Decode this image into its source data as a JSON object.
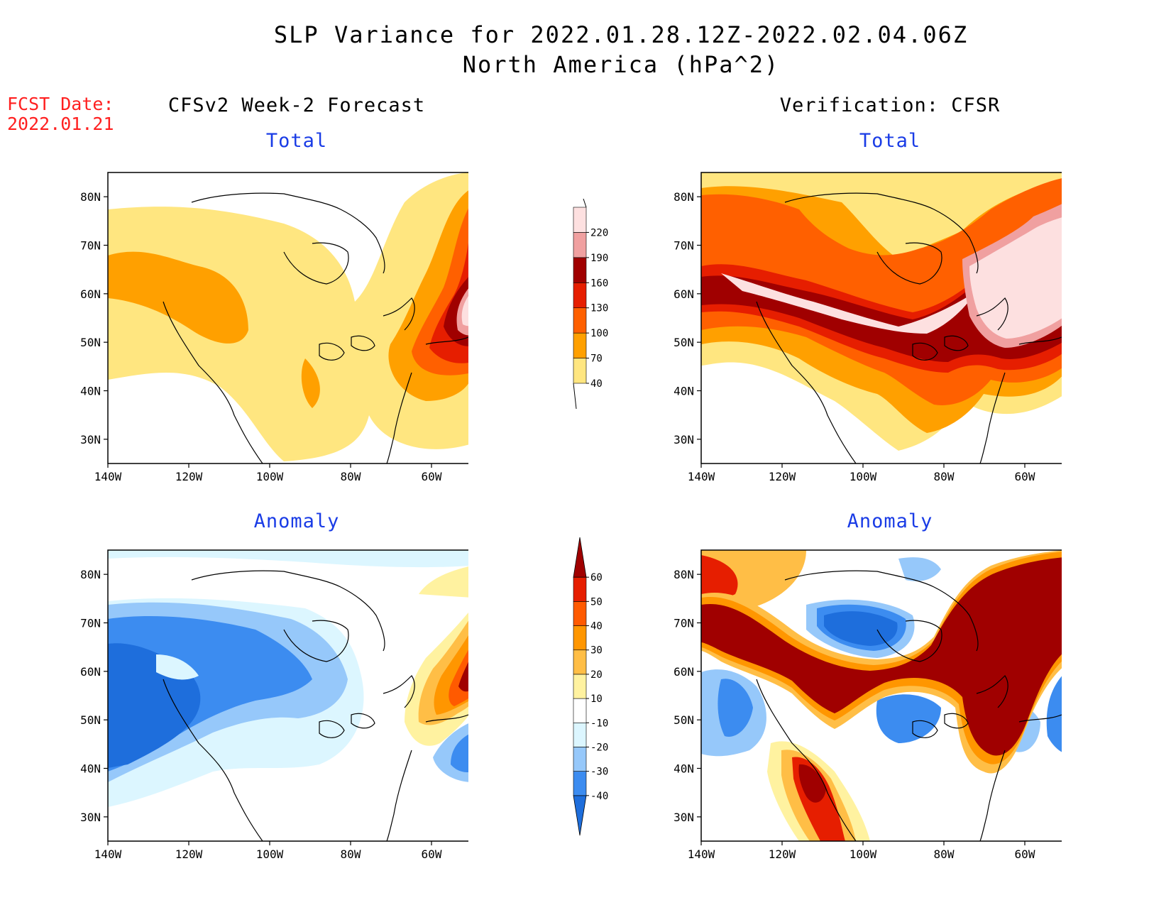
{
  "title": {
    "line1": "SLP Variance for 2022.01.28.12Z-2022.02.04.06Z",
    "line2": "North America (hPa^2)"
  },
  "fcst_date": {
    "label": "FCST Date:",
    "value": "2022.01.21"
  },
  "columns": {
    "left": "CFSv2 Week-2 Forecast",
    "right": "Verification: CFSR"
  },
  "panel_titles": {
    "forecast_total": "Total",
    "verification_total": "Total",
    "forecast_anomaly": "Anomaly",
    "verification_anomaly": "Anomaly"
  },
  "axes": {
    "lat_ticks": [
      "80N",
      "70N",
      "60N",
      "50N",
      "40N",
      "30N"
    ],
    "lat_values": [
      80,
      70,
      60,
      50,
      40,
      30
    ],
    "lon_ticks": [
      "140W",
      "120W",
      "100W",
      "80W",
      "60W"
    ],
    "lon_values": [
      -140,
      -120,
      -100,
      -80,
      -60
    ],
    "lon_range": [
      -140,
      -50
    ],
    "lat_range": [
      25,
      85
    ]
  },
  "legend_total": {
    "levels": [
      "40",
      "70",
      "100",
      "130",
      "160",
      "190",
      "220"
    ],
    "colors": [
      "#ffe680",
      "#ffa000",
      "#ff6000",
      "#e61e00",
      "#a00000",
      "#f0a0a0",
      "#fde0e0"
    ]
  },
  "legend_anomaly": {
    "levels": [
      "-40",
      "-30",
      "-20",
      "-10",
      "10",
      "20",
      "30",
      "40",
      "50",
      "60"
    ],
    "colors": [
      "#1e6edc",
      "#3c8cf0",
      "#96c8fa",
      "#dcf6ff",
      "#ffffff",
      "#fff2a0",
      "#ffbe46",
      "#ff9600",
      "#ff5a00",
      "#e61e00",
      "#a00000"
    ]
  },
  "palette": {
    "total_bands": [
      "#ffffff",
      "#ffe680",
      "#ffa000",
      "#ff6000",
      "#e61e00",
      "#a00000",
      "#f0a0a0",
      "#fde0e0"
    ],
    "anomaly_bands": [
      "#1e6edc",
      "#3c8cf0",
      "#96c8fa",
      "#dcf6ff",
      "#ffffff",
      "#fff2a0",
      "#ffbe46",
      "#ff9600",
      "#ff5a00",
      "#e61e00",
      "#a00000"
    ]
  }
}
